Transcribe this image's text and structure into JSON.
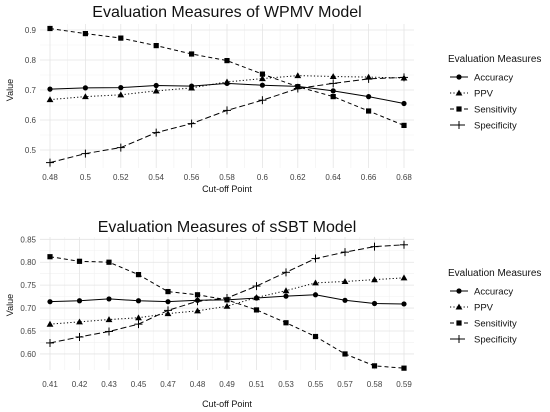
{
  "chart_data": [
    {
      "type": "line",
      "title": "Evaluation Measures of WPMV Model",
      "xlabel": "Cut-off Point",
      "ylabel": "Value",
      "x": [
        "0.48",
        "0.5",
        "0.52",
        "0.54",
        "0.56",
        "0.58",
        "0.6",
        "0.62",
        "0.64",
        "0.66",
        "0.68"
      ],
      "yticks": [
        "0.5",
        "0.6",
        "0.7",
        "0.8",
        "0.9"
      ],
      "ylim": [
        0.44,
        0.92
      ],
      "grid": true,
      "legend": {
        "title": "Evaluation Measures",
        "position": "right"
      },
      "series": [
        {
          "name": "Accuracy",
          "marker": "circle",
          "dash": "solid",
          "values": [
            0.703,
            0.707,
            0.708,
            0.715,
            0.713,
            0.722,
            0.716,
            0.712,
            0.697,
            0.678,
            0.655
          ]
        },
        {
          "name": "PPV",
          "marker": "triangle",
          "dash": "dotted",
          "values": [
            0.668,
            0.678,
            0.684,
            0.697,
            0.707,
            0.727,
            0.738,
            0.748,
            0.745,
            0.743,
            0.74
          ]
        },
        {
          "name": "Sensitivity",
          "marker": "square",
          "dash": "dashed",
          "values": [
            0.905,
            0.888,
            0.873,
            0.848,
            0.82,
            0.798,
            0.753,
            0.711,
            0.678,
            0.63,
            0.582
          ]
        },
        {
          "name": "Specificity",
          "marker": "plus",
          "dash": "longdash",
          "values": [
            0.458,
            0.488,
            0.508,
            0.558,
            0.588,
            0.632,
            0.666,
            0.705,
            0.722,
            0.737,
            0.742
          ]
        }
      ]
    },
    {
      "type": "line",
      "title": "Evaluation Measures of sSBT Model",
      "xlabel": "Cut-off Point",
      "ylabel": "Value",
      "x": [
        "0.41",
        "0.42",
        "0.43",
        "0.45",
        "0.47",
        "0.48",
        "0.49",
        "0.51",
        "0.53",
        "0.55",
        "0.57",
        "0.58",
        "0.59"
      ],
      "yticks": [
        "0.60",
        "0.65",
        "0.70",
        "0.75",
        "0.80",
        "0.85"
      ],
      "ylim": [
        0.565,
        0.855
      ],
      "grid": true,
      "legend": {
        "title": "Evaluation Measures",
        "position": "right"
      },
      "series": [
        {
          "name": "Accuracy",
          "marker": "circle",
          "dash": "solid",
          "values": [
            0.714,
            0.716,
            0.72,
            0.716,
            0.714,
            0.717,
            0.718,
            0.722,
            0.726,
            0.729,
            0.717,
            0.71,
            0.709
          ]
        },
        {
          "name": "PPV",
          "marker": "triangle",
          "dash": "dotted",
          "values": [
            0.665,
            0.67,
            0.675,
            0.679,
            0.688,
            0.694,
            0.704,
            0.723,
            0.738,
            0.755,
            0.758,
            0.762,
            0.766
          ]
        },
        {
          "name": "Sensitivity",
          "marker": "square",
          "dash": "dashed",
          "values": [
            0.812,
            0.802,
            0.8,
            0.773,
            0.736,
            0.729,
            0.718,
            0.696,
            0.668,
            0.638,
            0.6,
            0.574,
            0.569
          ]
        },
        {
          "name": "Specificity",
          "marker": "plus",
          "dash": "longdash",
          "values": [
            0.624,
            0.637,
            0.649,
            0.665,
            0.695,
            0.715,
            0.722,
            0.748,
            0.778,
            0.808,
            0.822,
            0.834,
            0.838
          ]
        }
      ]
    }
  ]
}
